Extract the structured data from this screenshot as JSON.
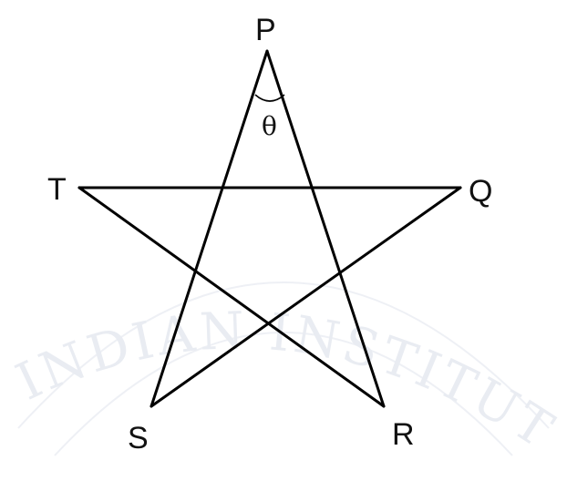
{
  "diagram": {
    "vertices": [
      "P",
      "Q",
      "R",
      "S",
      "T"
    ],
    "angle_label": "θ",
    "edges": [
      [
        "P",
        "S"
      ],
      [
        "P",
        "R"
      ],
      [
        "T",
        "Q"
      ],
      [
        "T",
        "R"
      ],
      [
        "Q",
        "S"
      ]
    ]
  },
  "watermark": {
    "text": "INDIAN INSTITUTE OF"
  },
  "colors": {
    "line": "#000000",
    "label": "#111111",
    "watermark": "#e9ecf2"
  }
}
